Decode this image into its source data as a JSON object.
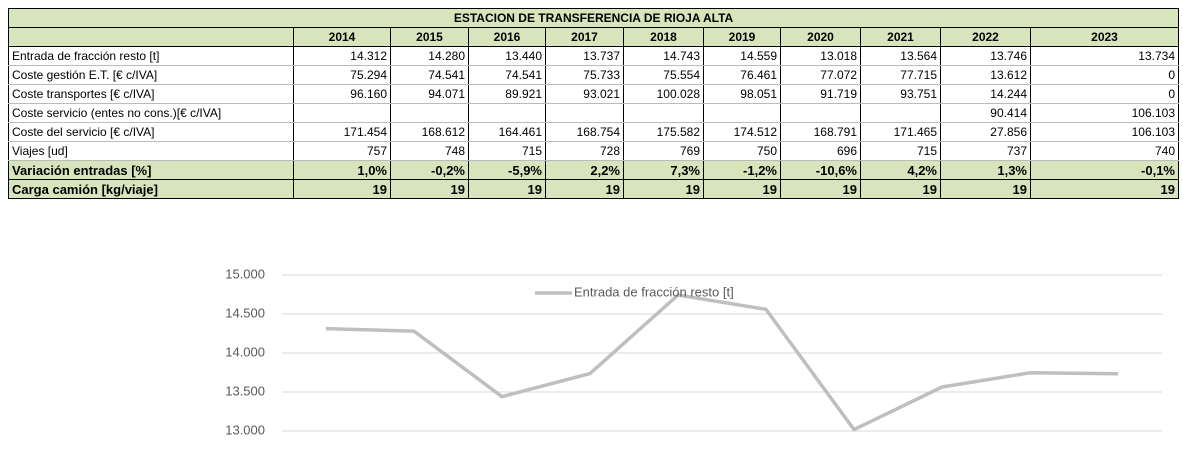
{
  "table": {
    "title": "ESTACION DE TRANSFERENCIA DE RIOJA ALTA",
    "years": [
      "2014",
      "2015",
      "2016",
      "2017",
      "2018",
      "2019",
      "2020",
      "2021",
      "2022",
      "2023"
    ],
    "rows": [
      {
        "label": "Entrada de fracción resto [t]",
        "cells": [
          "14.312",
          "14.280",
          "13.440",
          "13.737",
          "14.743",
          "14.559",
          "13.018",
          "13.564",
          "13.746",
          "13.734"
        ]
      },
      {
        "label": "Coste gestión E.T. [€ c/IVA]",
        "cells": [
          "75.294",
          "74.541",
          "74.541",
          "75.733",
          "75.554",
          "76.461",
          "77.072",
          "77.715",
          "13.612",
          "0"
        ]
      },
      {
        "label": "Coste transportes [€ c/IVA]",
        "cells": [
          "96.160",
          "94.071",
          "89.921",
          "93.021",
          "100.028",
          "98.051",
          "91.719",
          "93.751",
          "14.244",
          "0"
        ]
      },
      {
        "label": "Coste servicio (entes no cons.)[€ c/IVA]",
        "cells": [
          null,
          null,
          null,
          null,
          null,
          null,
          null,
          null,
          "90.414",
          "106.103"
        ]
      },
      {
        "label": "Coste del servicio [€ c/IVA]",
        "cells": [
          "171.454",
          "168.612",
          "164.461",
          "168.754",
          "175.582",
          "174.512",
          "168.791",
          "171.465",
          "27.856",
          "106.103"
        ]
      },
      {
        "label": "Viajes [ud]",
        "cells": [
          "757",
          "748",
          "715",
          "728",
          "769",
          "750",
          "696",
          "715",
          "737",
          "740"
        ]
      }
    ],
    "summary_rows": [
      {
        "label": "Variación entradas [%]",
        "cells": [
          "1,0%",
          "-0,2%",
          "-5,9%",
          "2,2%",
          "7,3%",
          "-1,2%",
          "-10,6%",
          "4,2%",
          "1,3%",
          "-0,1%"
        ]
      },
      {
        "label": "Carga camión [kg/viaje]",
        "cells": [
          "19",
          "19",
          "19",
          "19",
          "19",
          "19",
          "19",
          "19",
          "19",
          "19"
        ]
      }
    ]
  },
  "chart_data": {
    "type": "line",
    "series": [
      {
        "name": "Entrada de fracción resto [t]",
        "color": "#bfbfbf",
        "values": [
          14312,
          14280,
          13440,
          13737,
          14743,
          14559,
          13018,
          13564,
          13746,
          13734
        ]
      }
    ],
    "ylim": [
      13000,
      15000
    ],
    "yticks": [
      {
        "value": 13000,
        "label": "13.000"
      },
      {
        "value": 13500,
        "label": "13.500"
      },
      {
        "value": 14000,
        "label": "14.000"
      },
      {
        "value": 14500,
        "label": "14.500"
      },
      {
        "value": 15000,
        "label": "15.000"
      }
    ],
    "grid": true
  }
}
